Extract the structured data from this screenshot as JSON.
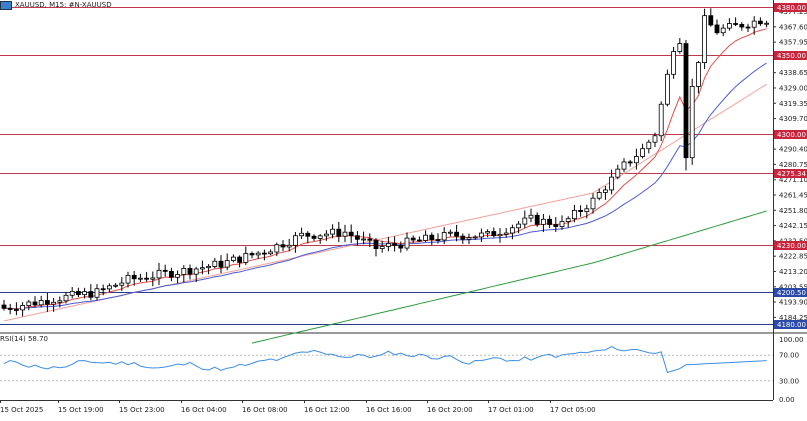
{
  "header": {
    "symbol_label": "XAUUSD, M15: #N-XAUUSD",
    "icon": "chart-window-icon"
  },
  "rsi": {
    "label": "RSI(14) 58.70",
    "levels": [
      "100.00",
      "70.00",
      "30.00",
      "0.00"
    ],
    "color": "#3d8ee6"
  },
  "colors": {
    "bull_candle": "#ffffff",
    "bear_candle": "#000000",
    "ma_red": "#e0504a",
    "ma_blue": "#4a5bd6",
    "ma_salmon": "#f1a39a",
    "ma_green": "#2f9b3a",
    "level_red_line": "#c0384b",
    "level_blue_line": "#2a3a8a",
    "level_red_tag": "#c8243b",
    "level_blue_tag": "#2b4aa8",
    "current_price_tag": "#c8243b"
  },
  "price_axis": {
    "ticks": [
      "4377.25",
      "4367.60",
      "4357.95",
      "4348.30",
      "4338.65",
      "4329.00",
      "4319.35",
      "4309.70",
      "4300.05",
      "4290.40",
      "4280.75",
      "4271.10",
      "4261.45",
      "4251.80",
      "4242.15",
      "4232.50",
      "4222.85",
      "4213.20",
      "4203.55",
      "4193.90",
      "4184.25"
    ]
  },
  "level_tags": [
    {
      "value": "4380.00",
      "kind": "red"
    },
    {
      "value": "4350.00",
      "kind": "red"
    },
    {
      "value": "4300.00",
      "kind": "red"
    },
    {
      "value": "4275.34",
      "kind": "red"
    },
    {
      "value": "4230.00",
      "kind": "red"
    },
    {
      "value": "4200.50",
      "kind": "blue"
    },
    {
      "value": "4180.00",
      "kind": "blue"
    }
  ],
  "time_axis": {
    "ticks": [
      "15 Oct 2025",
      "15 Oct 19:00",
      "15 Oct 23:00",
      "16 Oct 04:00",
      "16 Oct 08:00",
      "16 Oct 12:00",
      "16 Oct 16:00",
      "16 Oct 20:00",
      "17 Oct 01:00",
      "17 Oct 05:00"
    ]
  }
}
